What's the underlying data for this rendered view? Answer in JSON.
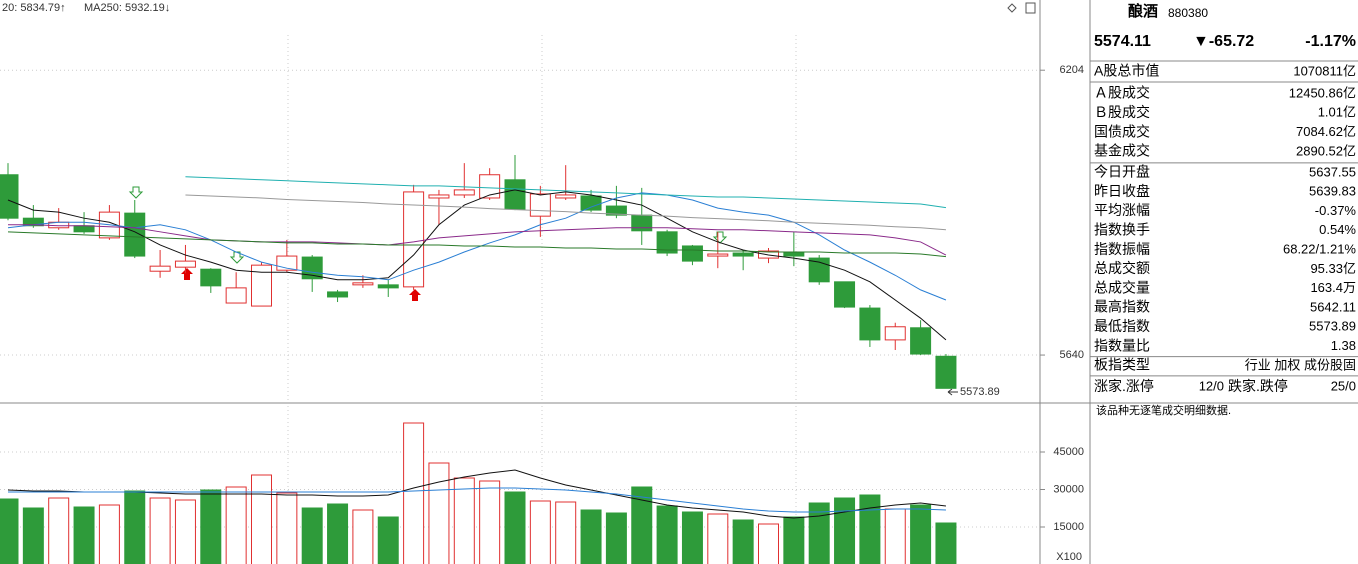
{
  "chart_data": {
    "type": "candlestick",
    "ma_labels": [
      {
        "text": "20: 5834.79↑",
        "color": "#2a7a2a"
      },
      {
        "text": "MA250: 5932.19↓",
        "color": "#20b0b0"
      }
    ],
    "open": [
      5997,
      5911,
      5892,
      5896,
      5872,
      5921,
      5806,
      5814,
      5810,
      5743,
      5737,
      5808,
      5834,
      5765,
      5779,
      5779,
      5775,
      5951,
      5957,
      5951,
      5987,
      5915,
      5951,
      5955,
      5935,
      5917,
      5884,
      5856,
      5836,
      5842,
      5832,
      5844,
      5832,
      5785,
      5733,
      5670,
      5694,
      5637.55
    ],
    "high": [
      6020,
      5937,
      5931,
      5923,
      5937,
      5947,
      5848,
      5858,
      5812,
      5804,
      5824,
      5868,
      5838,
      5769,
      5798,
      5789,
      5977,
      5967,
      6020,
      6010,
      6036,
      5975,
      6016,
      5967,
      5975,
      5971,
      5888,
      5858,
      5884,
      5848,
      5852,
      5884,
      5838,
      5785,
      5739,
      5704,
      5709,
      5642.11
    ],
    "low": [
      5907,
      5892,
      5888,
      5880,
      5868,
      5832,
      5793,
      5802,
      5763,
      5743,
      5737,
      5804,
      5765,
      5745,
      5773,
      5755,
      5769,
      5898,
      5951,
      5947,
      5927,
      5874,
      5947,
      5923,
      5911,
      5858,
      5836,
      5818,
      5812,
      5808,
      5822,
      5816,
      5779,
      5733,
      5656,
      5650,
      5640,
      5573.89
    ],
    "close": [
      5911,
      5896,
      5903,
      5884,
      5923,
      5836,
      5816,
      5826,
      5777,
      5773,
      5818,
      5836,
      5791,
      5755,
      5783,
      5773,
      5963,
      5957,
      5967,
      5997,
      5929,
      5959,
      5957,
      5927,
      5917,
      5886,
      5842,
      5826,
      5840,
      5836,
      5846,
      5836,
      5785,
      5735,
      5670,
      5696,
      5642,
      5574.11
    ],
    "up_color": "#e03030",
    "down_color": "#2e9b3a",
    "ylim": [
      5551,
      6343
    ],
    "yticks": [
      6204,
      5640
    ],
    "ma_lines": [
      {
        "color": "#111111",
        "values": [
          5947,
          5927,
          5923,
          5911,
          5903,
          5884,
          5858,
          5838,
          5824,
          5808,
          5804,
          5804,
          5798,
          5789,
          5789,
          5793,
          5838,
          5898,
          5937,
          5957,
          5967,
          5957,
          5963,
          5957,
          5947,
          5937,
          5911,
          5884,
          5864,
          5848,
          5838,
          5832,
          5824,
          5808,
          5785,
          5749,
          5713,
          5670
        ]
      },
      {
        "color": "#2a7fd4",
        "values": [
          5892,
          5898,
          5903,
          5903,
          5898,
          5892,
          5898,
          5888,
          5868,
          5844,
          5824,
          5812,
          5804,
          5798,
          5795,
          5789,
          5808,
          5824,
          5844,
          5862,
          5878,
          5898,
          5911,
          5933,
          5951,
          5961,
          5957,
          5947,
          5931,
          5923,
          5917,
          5903,
          5878,
          5848,
          5824,
          5798,
          5769,
          5749
        ]
      },
      {
        "color": "#8a2a8a",
        "values": [
          5898,
          5898,
          5896,
          5896,
          5894,
          5892,
          5884,
          5876,
          5868,
          5866,
          5864,
          5864,
          5864,
          5862,
          5860,
          5858,
          5864,
          5872,
          5876,
          5880,
          5884,
          5886,
          5888,
          5890,
          5892,
          5892,
          5892,
          5890,
          5888,
          5888,
          5886,
          5884,
          5882,
          5880,
          5878,
          5872,
          5864,
          5838
        ]
      },
      {
        "color": "#2a7a2a",
        "values": [
          5884,
          5882,
          5880,
          5878,
          5876,
          5874,
          5872,
          5870,
          5868,
          5866,
          5864,
          5862,
          5862,
          5860,
          5860,
          5858,
          5858,
          5858,
          5856,
          5856,
          5854,
          5854,
          5852,
          5852,
          5850,
          5850,
          5848,
          5848,
          5846,
          5846,
          5844,
          5844,
          5844,
          5842,
          5842,
          5842,
          5840,
          5835
        ]
      },
      {
        "color": "#999999",
        "values": [
          null,
          null,
          null,
          null,
          null,
          null,
          null,
          5957,
          5955,
          5953,
          5951,
          5948,
          5946,
          5944,
          5942,
          5939,
          5937,
          5935,
          5933,
          5930,
          5928,
          5926,
          5924,
          5921,
          5919,
          5917,
          5915,
          5912,
          5910,
          5908,
          5906,
          5903,
          5901,
          5899,
          5897,
          5894,
          5892,
          5888
        ]
      },
      {
        "color": "#20b0b0",
        "values": [
          null,
          null,
          null,
          null,
          null,
          null,
          null,
          5993,
          5991,
          5989,
          5987,
          5985,
          5983,
          5981,
          5979,
          5977,
          5975,
          5975,
          5973,
          5971,
          5969,
          5967,
          5965,
          5963,
          5961,
          5959,
          5957,
          5955,
          5953,
          5953,
          5951,
          5949,
          5947,
          5945,
          5943,
          5941,
          5939,
          5932
        ]
      }
    ],
    "volume": {
      "values": [
        26200,
        22600,
        26600,
        23000,
        23800,
        29400,
        26600,
        25800,
        29800,
        31000,
        35800,
        28600,
        22600,
        24200,
        21800,
        19000,
        56600,
        40600,
        34600,
        33400,
        29000,
        25400,
        25000,
        21800,
        20600,
        31000,
        23400,
        21000,
        20200,
        17800,
        16200,
        19000,
        24600,
        26600,
        27800,
        22200,
        23800,
        16600
      ],
      "ylim": [
        0,
        63800
      ],
      "yticks": [
        45000,
        30000,
        15000
      ],
      "unit_label": "X100",
      "ma_lines": [
        {
          "color": "#111111",
          "values": [
            29800,
            29400,
            29400,
            29000,
            29000,
            29000,
            28600,
            28200,
            28200,
            28200,
            28200,
            27800,
            27800,
            27400,
            27400,
            27800,
            30600,
            33000,
            35000,
            36600,
            37800,
            34600,
            31800,
            29800,
            27800,
            25800,
            23800,
            22600,
            21800,
            21000,
            19400,
            18600,
            19400,
            21000,
            22600,
            23800,
            24600,
            23400
          ]
        },
        {
          "color": "#2a7fd4",
          "values": [
            29000,
            29000,
            29000,
            29000,
            29000,
            29000,
            29000,
            29000,
            29000,
            29000,
            29000,
            29000,
            29000,
            29000,
            29000,
            29000,
            29400,
            29800,
            30200,
            30600,
            30600,
            30200,
            29800,
            29000,
            28200,
            27000,
            25800,
            24600,
            23400,
            22200,
            21400,
            21000,
            21000,
            21400,
            21800,
            22200,
            22200,
            21800
          ]
        }
      ]
    }
  },
  "panel": {
    "title": "酿酒",
    "code": "880380",
    "price": "5574.11",
    "change": "▼-65.72",
    "pct": "-1.17%",
    "price_color": "#109a10",
    "rows": [
      {
        "label": "A股总市值",
        "value": "1070811亿",
        "color": "#000"
      },
      {
        "label": "Ａ股成交",
        "value": "12450.86亿",
        "color": "#000"
      },
      {
        "label": "Ｂ股成交",
        "value": "1.01亿",
        "color": "#000"
      },
      {
        "label": "国债成交",
        "value": "7084.62亿",
        "color": "#000"
      },
      {
        "label": "基金成交",
        "value": "2890.52亿",
        "color": "#000"
      },
      {
        "label": "今日开盘",
        "value": "5637.55",
        "color": "#109a10"
      },
      {
        "label": "昨日收盘",
        "value": "5639.83",
        "color": "#000"
      },
      {
        "label": "平均涨幅",
        "value": "-0.37%",
        "color": "#109a10"
      },
      {
        "label": "指数换手",
        "value": "0.54%",
        "color": "#000"
      },
      {
        "label": "指数振幅",
        "value": "68.22/1.21%",
        "color": "#000"
      },
      {
        "label": "总成交额",
        "value": "95.33亿",
        "color": "#000"
      },
      {
        "label": "总成交量",
        "value": "163.4万",
        "color": "#000"
      },
      {
        "label": "最高指数",
        "value": "5642.11",
        "color": "#e02020"
      },
      {
        "label": "最低指数",
        "value": "5573.89",
        "color": "#109a10"
      },
      {
        "label": "指数量比",
        "value": "1.38",
        "color": "#e02020"
      },
      {
        "label": "板指类型",
        "value": "行业 加权 成份股固",
        "color": "#000"
      }
    ],
    "breadth": {
      "up_label": "涨家.涨停",
      "up_value": "12/0",
      "down_label": "跌家.跌停",
      "down_value": "25/0"
    },
    "note": "该品种无逐笔成交明细数据."
  }
}
